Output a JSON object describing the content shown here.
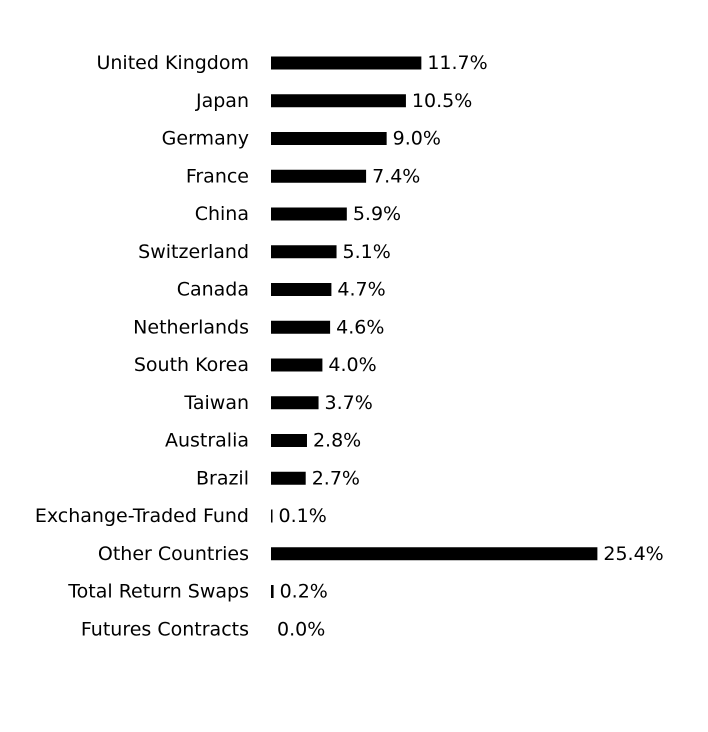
{
  "chart_data": {
    "type": "bar",
    "orientation": "horizontal",
    "categories": [
      "United Kingdom",
      "Japan",
      "Germany",
      "France",
      "China",
      "Switzerland",
      "Canada",
      "Netherlands",
      "South Korea",
      "Taiwan",
      "Australia",
      "Brazil",
      "Exchange-Traded Fund",
      "Other Countries",
      "Total Return Swaps",
      "Futures Contracts"
    ],
    "values": [
      11.7,
      10.5,
      9.0,
      7.4,
      5.9,
      5.1,
      4.7,
      4.6,
      4.0,
      3.7,
      2.8,
      2.7,
      0.1,
      25.4,
      0.2,
      0.0
    ],
    "value_labels": [
      "11.7%",
      "10.5%",
      "9.0%",
      "7.4%",
      "5.9%",
      "5.1%",
      "4.7%",
      "4.6%",
      "4.0%",
      "3.7%",
      "2.8%",
      "2.7%",
      "0.1%",
      "25.4%",
      "0.2%",
      "0.0%"
    ],
    "title": "",
    "xlabel": "",
    "ylabel": "",
    "grid": false,
    "bar_color": "#000000"
  }
}
